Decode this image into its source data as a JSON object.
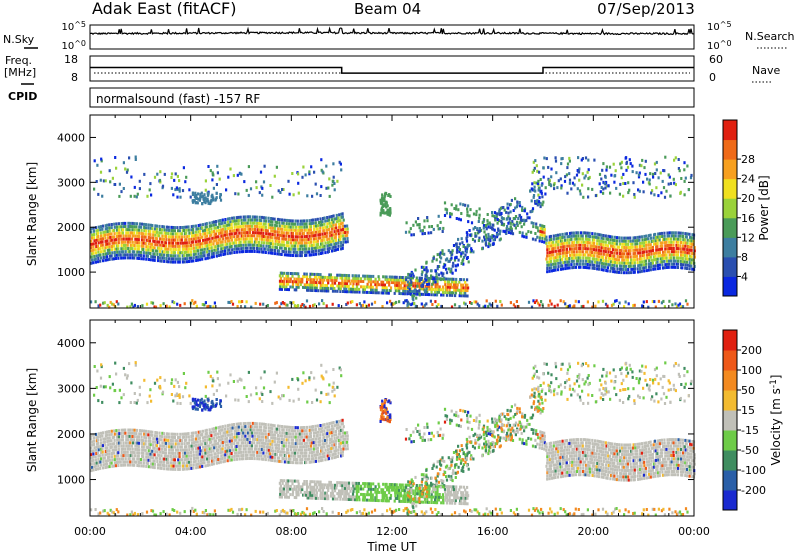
{
  "header": {
    "station": "Adak East (fitACF)",
    "beam": "Beam 04",
    "date": "07/Sep/2013"
  },
  "panels": {
    "nsky": {
      "left_label": "N.Sky",
      "right_label": "N.Search",
      "tick_top": "10^5",
      "tick_bottom": "10^0"
    },
    "freq": {
      "left_label_1": "Freq.",
      "left_label_2": "[MHz]",
      "left_ticks": [
        "18",
        "8"
      ],
      "right_label": "Nave",
      "right_ticks": [
        "60",
        "0"
      ]
    },
    "cpid": {
      "label": "CPID",
      "text": "normalsound (fast) -157 RF"
    }
  },
  "axes": {
    "ylabel": "Slant Range [km]",
    "yticks": [
      "1000",
      "2000",
      "3000",
      "4000"
    ],
    "xticks": [
      "00:00",
      "04:00",
      "08:00",
      "12:00",
      "16:00",
      "20:00",
      "00:00"
    ],
    "xlabel": "Time UT"
  },
  "colorbars": {
    "power": {
      "label": "Power [dB]",
      "ticks": [
        "4",
        "8",
        "12",
        "16",
        "20",
        "24",
        "28"
      ],
      "colors": [
        "#0a28e0",
        "#2a4fb0",
        "#3d7ea0",
        "#4a9b58",
        "#9ad23a",
        "#f0e020",
        "#f7a020",
        "#ef6a18",
        "#e02010"
      ]
    },
    "velocity": {
      "label": "Velocity [m s-1]",
      "ticks": [
        "200",
        "100",
        "50",
        "15",
        "-15",
        "-50",
        "-100",
        "-200"
      ],
      "colors": [
        "#1a2ad0",
        "#2a5fa8",
        "#3f8d60",
        "#6ecc48",
        "#c0c0b8",
        "#f3bb30",
        "#f38a20",
        "#ee5818",
        "#e02010"
      ]
    }
  },
  "chart_data": [
    {
      "type": "line",
      "title": "N.Sky / N.Search",
      "x": [
        "00:00",
        "04:00",
        "08:00",
        "12:00",
        "16:00",
        "20:00",
        "00:00"
      ],
      "series": [
        {
          "name": "N.Sky",
          "values": [
            3.2,
            3.3,
            3.4,
            3.3,
            3.3,
            3.2,
            3.2
          ]
        }
      ],
      "ylim": [
        0,
        5
      ],
      "scale": "log"
    },
    {
      "type": "line",
      "title": "Freq. [MHz] / Nave",
      "x": [
        "00:00",
        "10:00",
        "10:00",
        "18:00",
        "18:00",
        "00:00"
      ],
      "series": [
        {
          "name": "Freq. [MHz]",
          "values": [
            13.5,
            13.5,
            10.8,
            10.8,
            13.5,
            13.5
          ]
        },
        {
          "name": "Nave",
          "values": [
            12,
            12,
            12,
            12,
            12,
            12
          ]
        }
      ],
      "ylim": [
        8,
        18
      ]
    },
    {
      "type": "heatmap",
      "title": "",
      "xlabel": "Time UT",
      "ylabel": "Slant Range [km]",
      "xlim": [
        "00:00",
        "00:00"
      ],
      "ylim": [
        200,
        4500
      ],
      "color_label": "Power [dB]",
      "color_range": [
        0,
        30
      ]
    },
    {
      "type": "heatmap",
      "title": "",
      "xlabel": "Time UT",
      "ylabel": "Slant Range [km]",
      "xlim": [
        "00:00",
        "00:00"
      ],
      "ylim": [
        200,
        4500
      ],
      "color_label": "Velocity [m s-1]",
      "color_range": [
        -200,
        200
      ]
    }
  ]
}
